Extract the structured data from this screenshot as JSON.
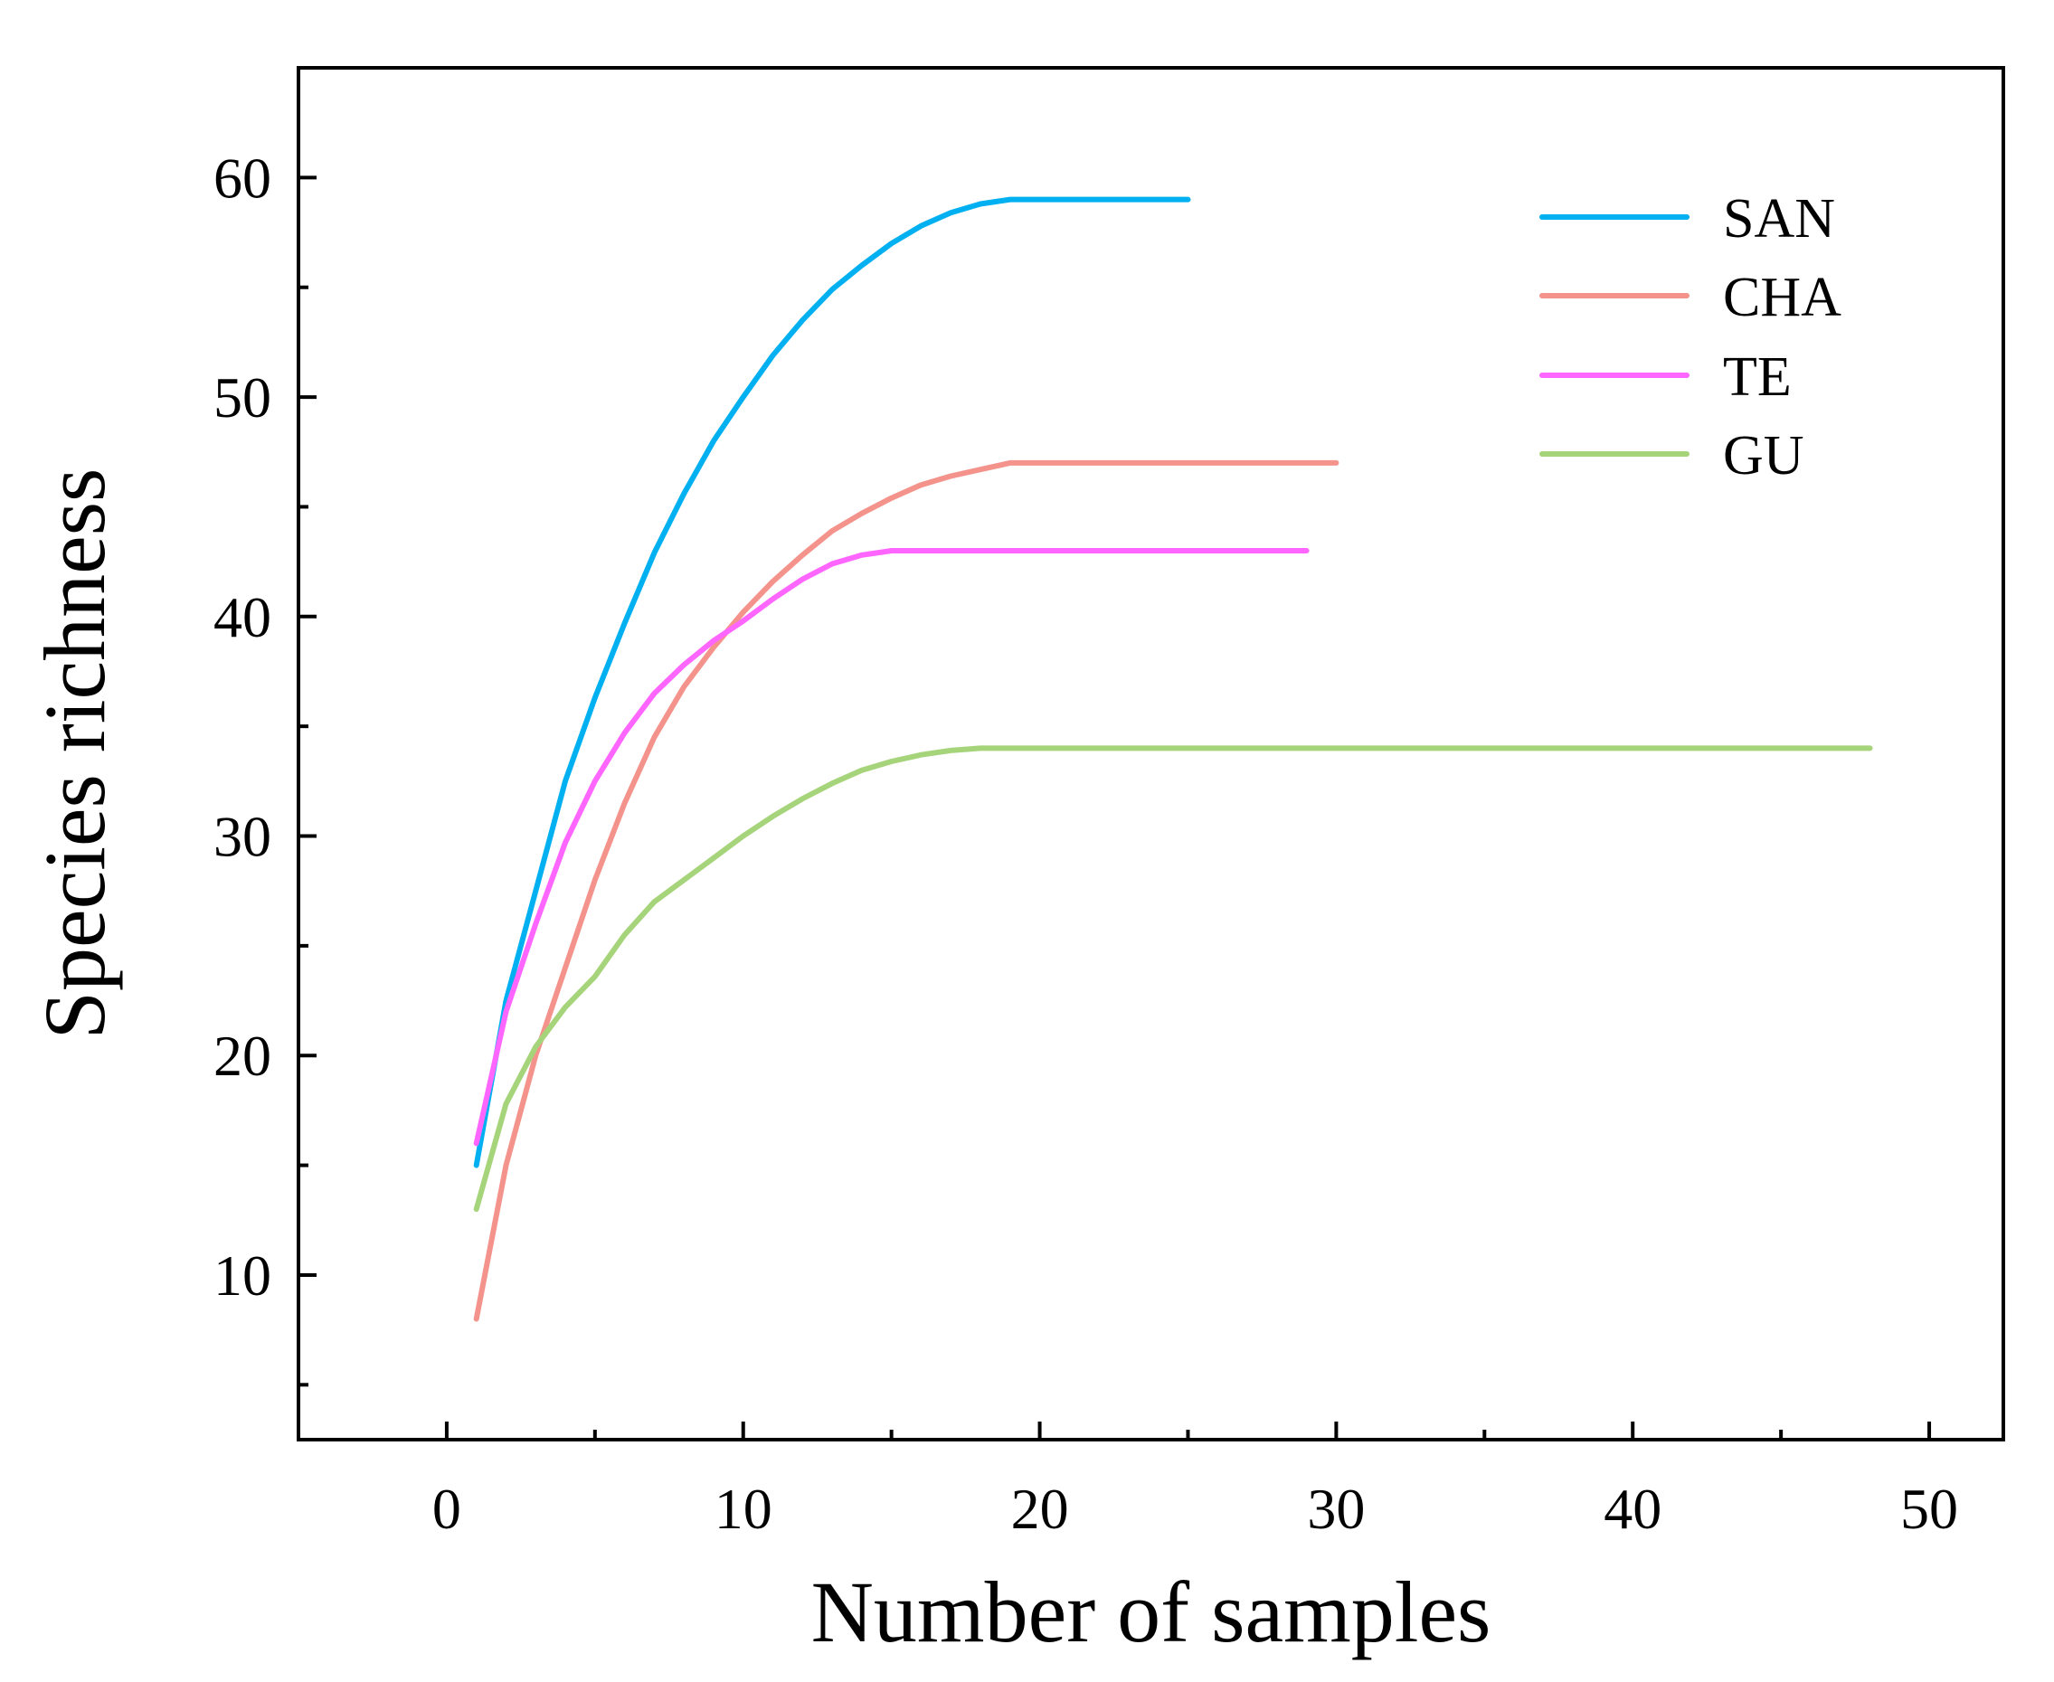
{
  "chart_data": {
    "type": "line",
    "title": "",
    "xlabel": "Number of samples",
    "ylabel": "Species richness",
    "xlim": [
      -5,
      52.5
    ],
    "ylim": [
      2.5,
      65
    ],
    "xticks": [
      0,
      10,
      20,
      30,
      40,
      50
    ],
    "xtick_labels": [
      "0",
      "10",
      "20",
      "30",
      "40",
      "50"
    ],
    "xminor": [
      5,
      15,
      25,
      35,
      45
    ],
    "yticks": [
      10,
      20,
      30,
      40,
      50,
      60
    ],
    "ytick_labels": [
      "10",
      "20",
      "30",
      "40",
      "50",
      "60"
    ],
    "yminor": [
      5,
      15,
      25,
      35,
      45,
      55
    ],
    "grid": false,
    "legend_position": "top-right",
    "series": [
      {
        "name": "SAN",
        "color": "#00b0f0",
        "x": [
          1,
          2,
          3,
          4,
          5,
          6,
          7,
          8,
          9,
          10,
          11,
          12,
          13,
          14,
          15,
          16,
          17,
          18,
          19,
          20,
          21,
          22,
          23,
          24,
          25
        ],
        "y": [
          15,
          22.5,
          27.5,
          32.5,
          36.3,
          39.7,
          42.9,
          45.6,
          48.0,
          50.0,
          51.9,
          53.5,
          54.9,
          56.0,
          57.0,
          57.8,
          58.4,
          58.8,
          59,
          59,
          59,
          59,
          59,
          59,
          59
        ]
      },
      {
        "name": "CHA",
        "color": "#f4938b",
        "x": [
          1,
          2,
          3,
          4,
          5,
          6,
          7,
          8,
          9,
          10,
          11,
          12,
          13,
          14,
          15,
          16,
          17,
          18,
          19,
          20,
          21,
          22,
          23,
          24,
          25,
          26,
          27,
          28,
          29,
          30
        ],
        "y": [
          8,
          15.0,
          20.0,
          24.0,
          28.0,
          31.5,
          34.5,
          36.8,
          38.6,
          40.2,
          41.6,
          42.8,
          43.9,
          44.7,
          45.4,
          46.0,
          46.4,
          46.7,
          47,
          47,
          47,
          47,
          47,
          47,
          47,
          47,
          47,
          47,
          47,
          47
        ]
      },
      {
        "name": "TE",
        "color": "#ff66ff",
        "x": [
          1,
          2,
          3,
          4,
          5,
          6,
          7,
          8,
          9,
          10,
          11,
          12,
          13,
          14,
          15,
          16,
          17,
          18,
          19,
          20,
          21,
          22,
          23,
          24,
          25,
          26,
          27,
          28,
          29
        ],
        "y": [
          16,
          22.0,
          26.0,
          29.7,
          32.5,
          34.7,
          36.5,
          37.8,
          38.9,
          39.8,
          40.8,
          41.7,
          42.4,
          42.8,
          43,
          43,
          43,
          43,
          43,
          43,
          43,
          43,
          43,
          43,
          43,
          43,
          43,
          43,
          43
        ]
      },
      {
        "name": "GU",
        "color": "#a6d47a",
        "x": [
          1,
          2,
          3,
          4,
          5,
          6,
          7,
          8,
          9,
          10,
          11,
          12,
          13,
          14,
          15,
          16,
          17,
          18,
          19,
          20,
          25,
          30,
          35,
          40,
          45,
          48
        ],
        "y": [
          13,
          17.8,
          20.4,
          22.2,
          23.6,
          25.5,
          27.0,
          28.0,
          29.0,
          30.0,
          30.9,
          31.7,
          32.4,
          33.0,
          33.4,
          33.7,
          33.9,
          34,
          34,
          34,
          34,
          34,
          34,
          34,
          34,
          34
        ]
      }
    ]
  }
}
